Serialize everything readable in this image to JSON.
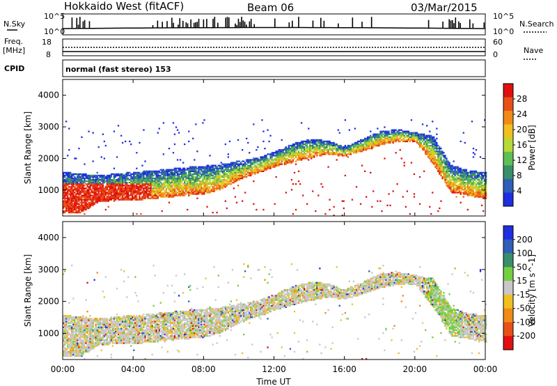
{
  "header": {
    "radar_title": "Hokkaido West (fitACF)",
    "beam": "Beam 06",
    "date": "03/Mar/2015"
  },
  "strip": {
    "nsky_label": "N.Sky",
    "nsearch_label": "N.Search",
    "nsky_ticks": [
      "10^5",
      "10^0"
    ],
    "nsearch_ticks": [
      "10^5",
      "10^0"
    ],
    "freq_label": "Freq.",
    "freq_unit": "[MHz]",
    "freq_ticks": [
      "18",
      "8"
    ],
    "nave_label": "Nave",
    "nave_ticks": [
      "60",
      "0"
    ],
    "cpid_label": "CPID",
    "cpid_value": "normal (fast stereo) 153"
  },
  "colors": {
    "power_scale": [
      "#1f2ee0",
      "#2f5fb8",
      "#3b8f68",
      "#5fbf55",
      "#b8d838",
      "#f0c020",
      "#f08a18",
      "#e85018",
      "#e01010"
    ],
    "velocity_scale": [
      "#1f2ee0",
      "#2f5fb8",
      "#3b8f68",
      "#74d040",
      "#c8c8c8",
      "#f0c020",
      "#f08a18",
      "#e85018",
      "#e01010"
    ]
  },
  "chart_data": [
    {
      "type": "heatmap",
      "panel": "power",
      "x_tick_labels": [
        "00:00",
        "04:00",
        "08:00",
        "12:00",
        "16:00",
        "20:00",
        "00:00"
      ],
      "x_range_hours": [
        0,
        24
      ],
      "ylabel": "Slant Range [km]",
      "y_tick_labels": [
        "1000",
        "2000",
        "3000",
        "4000"
      ],
      "ylim_km": [
        180,
        4500
      ],
      "colorbar_label": "Power [dB]",
      "colorbar_ticks": [
        "4",
        "8",
        "12",
        "16",
        "20",
        "24",
        "28"
      ],
      "colorbar_range": [
        0,
        32
      ],
      "echo_band_km": {
        "hours": [
          0,
          1,
          2,
          3,
          4,
          5,
          6,
          7,
          8,
          9,
          10,
          11,
          12,
          13,
          14,
          15,
          16,
          17,
          18,
          19,
          20,
          21,
          22,
          23,
          24
        ],
        "lower": [
          250,
          250,
          600,
          650,
          650,
          700,
          750,
          800,
          850,
          1000,
          1300,
          1500,
          1700,
          1850,
          2000,
          2100,
          2050,
          2200,
          2400,
          2500,
          2500,
          1800,
          900,
          800,
          700
        ],
        "upper": [
          1550,
          1500,
          1450,
          1500,
          1550,
          1600,
          1650,
          1700,
          1750,
          1800,
          1900,
          2000,
          2200,
          2450,
          2600,
          2550,
          2350,
          2600,
          2850,
          2900,
          2800,
          2700,
          1800,
          1600,
          1550
        ]
      }
    },
    {
      "type": "heatmap",
      "panel": "velocity",
      "x_tick_labels": [
        "00:00",
        "04:00",
        "08:00",
        "12:00",
        "16:00",
        "20:00",
        "00:00"
      ],
      "x_range_hours": [
        0,
        24
      ],
      "xlabel": "Time UT",
      "ylabel": "Slant Range [km]",
      "y_tick_labels": [
        "1000",
        "2000",
        "3000",
        "4000"
      ],
      "ylim_km": [
        180,
        4500
      ],
      "colorbar_label": "Velocity [m s^-1]",
      "colorbar_ticks": [
        "200",
        "100",
        "50",
        "15",
        "-15",
        "-50",
        "-100",
        "-200"
      ],
      "colorbar_range": [
        -200,
        200
      ],
      "echo_band_km": {
        "hours": [
          0,
          1,
          2,
          3,
          4,
          5,
          6,
          7,
          8,
          9,
          10,
          11,
          12,
          13,
          14,
          15,
          16,
          17,
          18,
          19,
          20,
          21,
          22,
          23,
          24
        ],
        "lower": [
          250,
          250,
          600,
          650,
          650,
          700,
          750,
          800,
          850,
          1000,
          1300,
          1500,
          1700,
          1850,
          2000,
          2100,
          2050,
          2200,
          2400,
          2500,
          2500,
          1800,
          900,
          800,
          700
        ],
        "upper": [
          1550,
          1500,
          1450,
          1500,
          1550,
          1600,
          1650,
          1700,
          1750,
          1800,
          1900,
          2000,
          2200,
          2450,
          2600,
          2550,
          2350,
          2600,
          2850,
          2900,
          2800,
          2700,
          1800,
          1600,
          1550
        ]
      }
    }
  ]
}
